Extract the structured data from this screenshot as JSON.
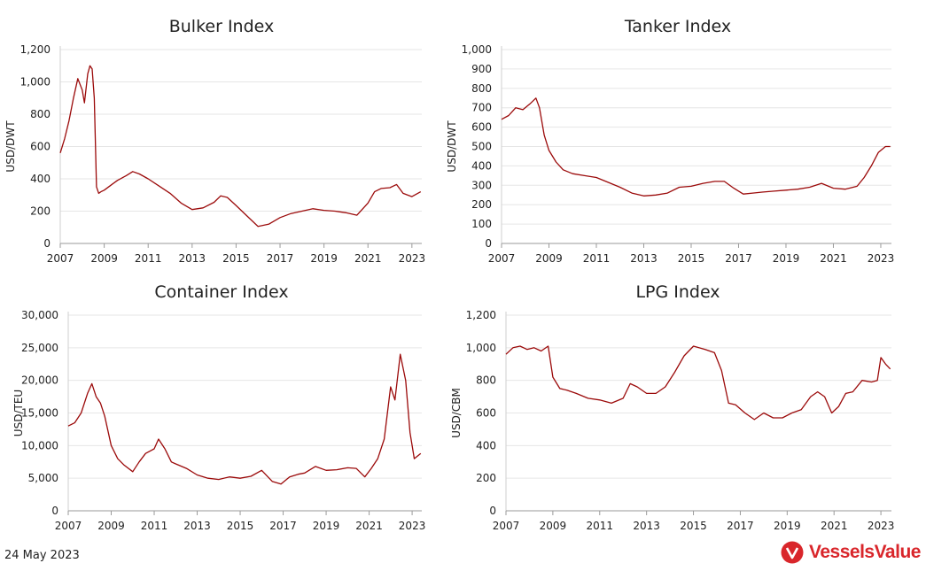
{
  "footer": {
    "date": "24 May 2023",
    "brand_name": "VesselsValue"
  },
  "colors": {
    "series": "#9b0a0a",
    "grid": "#e6e6e6",
    "brand": "#d9262b"
  },
  "chart_data": [
    {
      "type": "line",
      "title": "Bulker Index",
      "ylabel": "USD/DWT",
      "ylim": [
        0,
        1200
      ],
      "yticks": [
        0,
        200,
        400,
        600,
        800,
        1000,
        1200
      ],
      "ytick_labels": [
        "0",
        "200",
        "400",
        "600",
        "800",
        "1,000",
        "1,200"
      ],
      "xlim": [
        2007,
        2023.45
      ],
      "xticks": [
        "2007",
        "2009",
        "2011",
        "2013",
        "2015",
        "2017",
        "2019",
        "2021",
        "2023"
      ],
      "grid": true,
      "x": [
        2007.0,
        2007.2,
        2007.4,
        2007.6,
        2007.8,
        2008.0,
        2008.1,
        2008.25,
        2008.35,
        2008.45,
        2008.55,
        2008.65,
        2008.75,
        2008.85,
        2009.0,
        2009.3,
        2009.6,
        2010.0,
        2010.3,
        2010.6,
        2011.0,
        2011.5,
        2012.0,
        2012.5,
        2013.0,
        2013.5,
        2014.0,
        2014.3,
        2014.6,
        2015.0,
        2015.5,
        2016.0,
        2016.5,
        2017.0,
        2017.5,
        2018.0,
        2018.5,
        2019.0,
        2019.5,
        2020.0,
        2020.5,
        2021.0,
        2021.3,
        2021.6,
        2022.0,
        2022.3,
        2022.6,
        2023.0,
        2023.4
      ],
      "y": [
        560,
        650,
        760,
        900,
        1020,
        950,
        870,
        1050,
        1100,
        1080,
        900,
        350,
        310,
        320,
        330,
        360,
        390,
        420,
        445,
        430,
        400,
        355,
        310,
        250,
        210,
        220,
        255,
        295,
        285,
        235,
        170,
        105,
        120,
        160,
        185,
        200,
        215,
        205,
        200,
        190,
        175,
        250,
        320,
        340,
        345,
        365,
        310,
        290,
        320
      ]
    },
    {
      "type": "line",
      "title": "Tanker Index",
      "ylabel": "USD/DWT",
      "ylim": [
        0,
        1000
      ],
      "yticks": [
        0,
        100,
        200,
        300,
        400,
        500,
        600,
        700,
        800,
        900,
        1000
      ],
      "ytick_labels": [
        "0",
        "100",
        "200",
        "300",
        "400",
        "500",
        "600",
        "700",
        "800",
        "900",
        "1,000"
      ],
      "xlim": [
        2007,
        2023.45
      ],
      "xticks": [
        "2007",
        "2009",
        "2011",
        "2013",
        "2015",
        "2017",
        "2019",
        "2021",
        "2023"
      ],
      "grid": true,
      "x": [
        2007.0,
        2007.3,
        2007.6,
        2007.9,
        2008.2,
        2008.45,
        2008.6,
        2008.8,
        2009.0,
        2009.3,
        2009.6,
        2010.0,
        2010.5,
        2011.0,
        2011.5,
        2012.0,
        2012.5,
        2013.0,
        2013.5,
        2014.0,
        2014.5,
        2015.0,
        2015.5,
        2016.0,
        2016.4,
        2016.8,
        2017.2,
        2017.6,
        2018.0,
        2018.5,
        2019.0,
        2019.5,
        2020.0,
        2020.5,
        2021.0,
        2021.5,
        2022.0,
        2022.3,
        2022.6,
        2022.9,
        2023.2,
        2023.4
      ],
      "y": [
        640,
        660,
        700,
        690,
        720,
        750,
        700,
        560,
        480,
        420,
        380,
        360,
        350,
        340,
        315,
        290,
        260,
        245,
        250,
        260,
        290,
        295,
        310,
        320,
        320,
        285,
        255,
        260,
        265,
        270,
        275,
        280,
        290,
        310,
        285,
        280,
        295,
        340,
        400,
        470,
        500,
        500
      ]
    },
    {
      "type": "line",
      "title": "Container Index",
      "ylabel": "USD/TEU",
      "ylim": [
        0,
        30000
      ],
      "yticks": [
        0,
        5000,
        10000,
        15000,
        20000,
        25000,
        30000
      ],
      "ytick_labels": [
        "0",
        "5,000",
        "10,000",
        "15,000",
        "20,000",
        "25,000",
        "30,000"
      ],
      "xlim": [
        2007,
        2023.45
      ],
      "xticks": [
        "2007",
        "2009",
        "2011",
        "2013",
        "2015",
        "2017",
        "2019",
        "2021",
        "2023"
      ],
      "grid": true,
      "x": [
        2007.0,
        2007.3,
        2007.6,
        2007.9,
        2008.1,
        2008.3,
        2008.5,
        2008.7,
        2009.0,
        2009.3,
        2009.6,
        2010.0,
        2010.3,
        2010.6,
        2011.0,
        2011.2,
        2011.5,
        2011.8,
        2012.0,
        2012.5,
        2013.0,
        2013.5,
        2014.0,
        2014.5,
        2015.0,
        2015.5,
        2016.0,
        2016.5,
        2016.9,
        2017.3,
        2017.7,
        2018.0,
        2018.5,
        2019.0,
        2019.5,
        2020.0,
        2020.4,
        2020.8,
        2021.1,
        2021.4,
        2021.7,
        2022.0,
        2022.2,
        2022.45,
        2022.7,
        2022.9,
        2023.1,
        2023.4
      ],
      "y": [
        13000,
        13500,
        15000,
        18000,
        19500,
        17500,
        16500,
        14500,
        10000,
        8000,
        7000,
        6000,
        7500,
        8800,
        9500,
        11000,
        9500,
        7500,
        7200,
        6500,
        5500,
        5000,
        4800,
        5200,
        5000,
        5300,
        6200,
        4500,
        4100,
        5200,
        5600,
        5800,
        6800,
        6200,
        6300,
        6600,
        6500,
        5200,
        6500,
        8000,
        11000,
        19000,
        17000,
        24000,
        20000,
        12000,
        8000,
        8800
      ]
    },
    {
      "type": "line",
      "title": "LPG Index",
      "ylabel": "USD/CBM",
      "ylim": [
        0,
        1200
      ],
      "yticks": [
        0,
        200,
        400,
        600,
        800,
        1000,
        1200
      ],
      "ytick_labels": [
        "0",
        "200",
        "400",
        "600",
        "800",
        "1,000",
        "1,200"
      ],
      "xlim": [
        2007,
        2023.45
      ],
      "xticks": [
        "2007",
        "2009",
        "2011",
        "2013",
        "2015",
        "2017",
        "2019",
        "2021",
        "2023"
      ],
      "grid": true,
      "x": [
        2007.0,
        2007.3,
        2007.6,
        2007.9,
        2008.2,
        2008.5,
        2008.8,
        2009.0,
        2009.3,
        2009.6,
        2010.0,
        2010.5,
        2011.0,
        2011.5,
        2012.0,
        2012.3,
        2012.6,
        2013.0,
        2013.4,
        2013.8,
        2014.2,
        2014.6,
        2015.0,
        2015.5,
        2015.9,
        2016.2,
        2016.5,
        2016.8,
        2017.2,
        2017.6,
        2018.0,
        2018.4,
        2018.8,
        2019.2,
        2019.6,
        2020.0,
        2020.3,
        2020.6,
        2020.9,
        2021.2,
        2021.5,
        2021.8,
        2022.2,
        2022.6,
        2022.85,
        2023.0,
        2023.2,
        2023.4
      ],
      "y": [
        960,
        1000,
        1010,
        990,
        1000,
        980,
        1010,
        820,
        750,
        740,
        720,
        690,
        680,
        660,
        690,
        780,
        760,
        720,
        720,
        760,
        850,
        950,
        1010,
        990,
        970,
        860,
        660,
        650,
        600,
        560,
        600,
        570,
        570,
        600,
        620,
        700,
        730,
        700,
        600,
        640,
        720,
        730,
        800,
        790,
        800,
        940,
        900,
        870
      ]
    }
  ]
}
